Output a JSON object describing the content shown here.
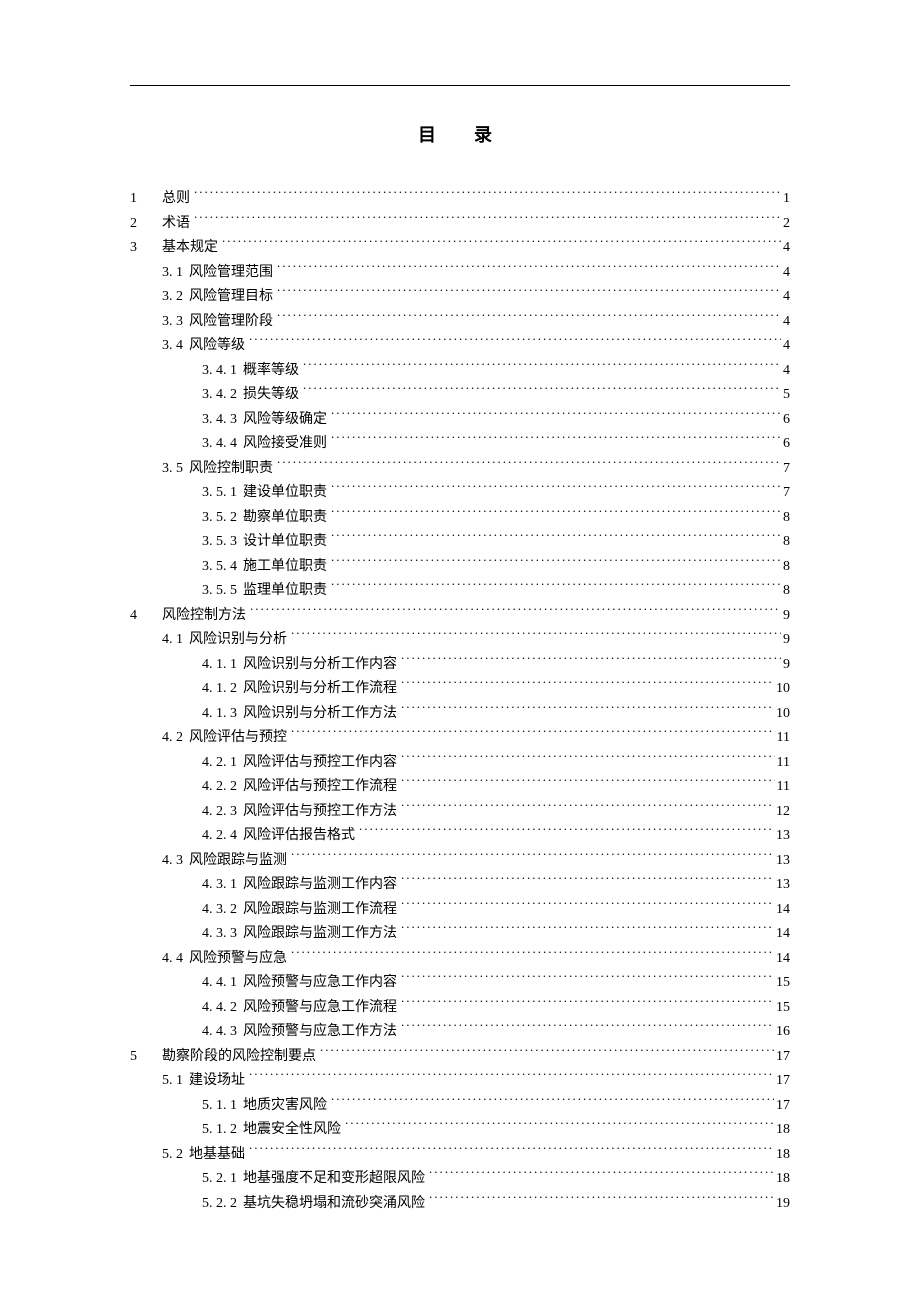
{
  "title": "目　录",
  "entries": [
    {
      "level": 1,
      "num": "1",
      "label": "总则",
      "page": "1"
    },
    {
      "level": 1,
      "num": "2",
      "label": "术语",
      "page": "2"
    },
    {
      "level": 1,
      "num": "3",
      "label": "基本规定",
      "page": "4"
    },
    {
      "level": 2,
      "num": "3. 1",
      "label": "风险管理范围",
      "page": "4"
    },
    {
      "level": 2,
      "num": "3. 2",
      "label": "风险管理目标",
      "page": "4"
    },
    {
      "level": 2,
      "num": "3. 3",
      "label": "风险管理阶段",
      "page": "4"
    },
    {
      "level": 2,
      "num": "3. 4",
      "label": "风险等级",
      "page": "4"
    },
    {
      "level": 3,
      "num": "3. 4. 1",
      "label": "概率等级",
      "page": "4"
    },
    {
      "level": 3,
      "num": "3. 4. 2",
      "label": "损失等级",
      "page": "5"
    },
    {
      "level": 3,
      "num": "3. 4. 3",
      "label": "风险等级确定",
      "page": "6"
    },
    {
      "level": 3,
      "num": "3. 4. 4",
      "label": "风险接受准则",
      "page": "6"
    },
    {
      "level": 2,
      "num": "3. 5",
      "label": "风险控制职责",
      "page": "7"
    },
    {
      "level": 3,
      "num": "3. 5. 1",
      "label": "建设单位职责",
      "page": "7"
    },
    {
      "level": 3,
      "num": "3. 5. 2",
      "label": "勘察单位职责",
      "page": "8"
    },
    {
      "level": 3,
      "num": "3. 5. 3",
      "label": "设计单位职责",
      "page": "8"
    },
    {
      "level": 3,
      "num": "3. 5. 4",
      "label": "施工单位职责",
      "page": "8"
    },
    {
      "level": 3,
      "num": "3. 5. 5",
      "label": "监理单位职责",
      "page": "8"
    },
    {
      "level": 1,
      "num": "4",
      "label": "风险控制方法",
      "page": "9"
    },
    {
      "level": 2,
      "num": "4. 1",
      "label": "风险识别与分析",
      "page": "9"
    },
    {
      "level": 3,
      "num": "4. 1. 1",
      "label": "风险识别与分析工作内容",
      "page": "9"
    },
    {
      "level": 3,
      "num": "4. 1. 2",
      "label": "风险识别与分析工作流程",
      "page": "10"
    },
    {
      "level": 3,
      "num": "4. 1. 3",
      "label": "风险识别与分析工作方法",
      "page": "10"
    },
    {
      "level": 2,
      "num": "4. 2",
      "label": "风险评估与预控",
      "page": "11"
    },
    {
      "level": 3,
      "num": "4. 2. 1",
      "label": "风险评估与预控工作内容",
      "page": "11"
    },
    {
      "level": 3,
      "num": "4. 2. 2",
      "label": "风险评估与预控工作流程",
      "page": "11"
    },
    {
      "level": 3,
      "num": "4. 2. 3",
      "label": "风险评估与预控工作方法",
      "page": "12"
    },
    {
      "level": 3,
      "num": "4. 2. 4",
      "label": "风险评估报告格式",
      "page": "13"
    },
    {
      "level": 2,
      "num": "4. 3",
      "label": "风险跟踪与监测",
      "page": "13"
    },
    {
      "level": 3,
      "num": "4. 3. 1",
      "label": "风险跟踪与监测工作内容",
      "page": "13"
    },
    {
      "level": 3,
      "num": "4. 3. 2",
      "label": "风险跟踪与监测工作流程",
      "page": "14"
    },
    {
      "level": 3,
      "num": "4. 3. 3",
      "label": "风险跟踪与监测工作方法",
      "page": "14"
    },
    {
      "level": 2,
      "num": "4. 4",
      "label": "风险预警与应急",
      "page": "14"
    },
    {
      "level": 3,
      "num": "4. 4. 1",
      "label": "风险预警与应急工作内容",
      "page": "15"
    },
    {
      "level": 3,
      "num": "4. 4. 2",
      "label": "风险预警与应急工作流程",
      "page": "15"
    },
    {
      "level": 3,
      "num": "4. 4. 3",
      "label": "风险预警与应急工作方法",
      "page": "16"
    },
    {
      "level": 1,
      "num": "5",
      "label": "勘察阶段的风险控制要点",
      "page": "17"
    },
    {
      "level": 2,
      "num": "5. 1",
      "label": "建设场址",
      "page": "17"
    },
    {
      "level": 3,
      "num": "5. 1. 1",
      "label": "地质灾害风险",
      "page": "17"
    },
    {
      "level": 3,
      "num": "5. 1. 2",
      "label": "地震安全性风险",
      "page": "18"
    },
    {
      "level": 2,
      "num": "5. 2",
      "label": "地基基础",
      "page": "18"
    },
    {
      "level": 3,
      "num": "5. 2. 1",
      "label": "地基强度不足和变形超限风险",
      "page": "18"
    },
    {
      "level": 3,
      "num": "5. 2. 2",
      "label": "基坑失稳坍塌和流砂突涌风险",
      "page": "19"
    }
  ]
}
